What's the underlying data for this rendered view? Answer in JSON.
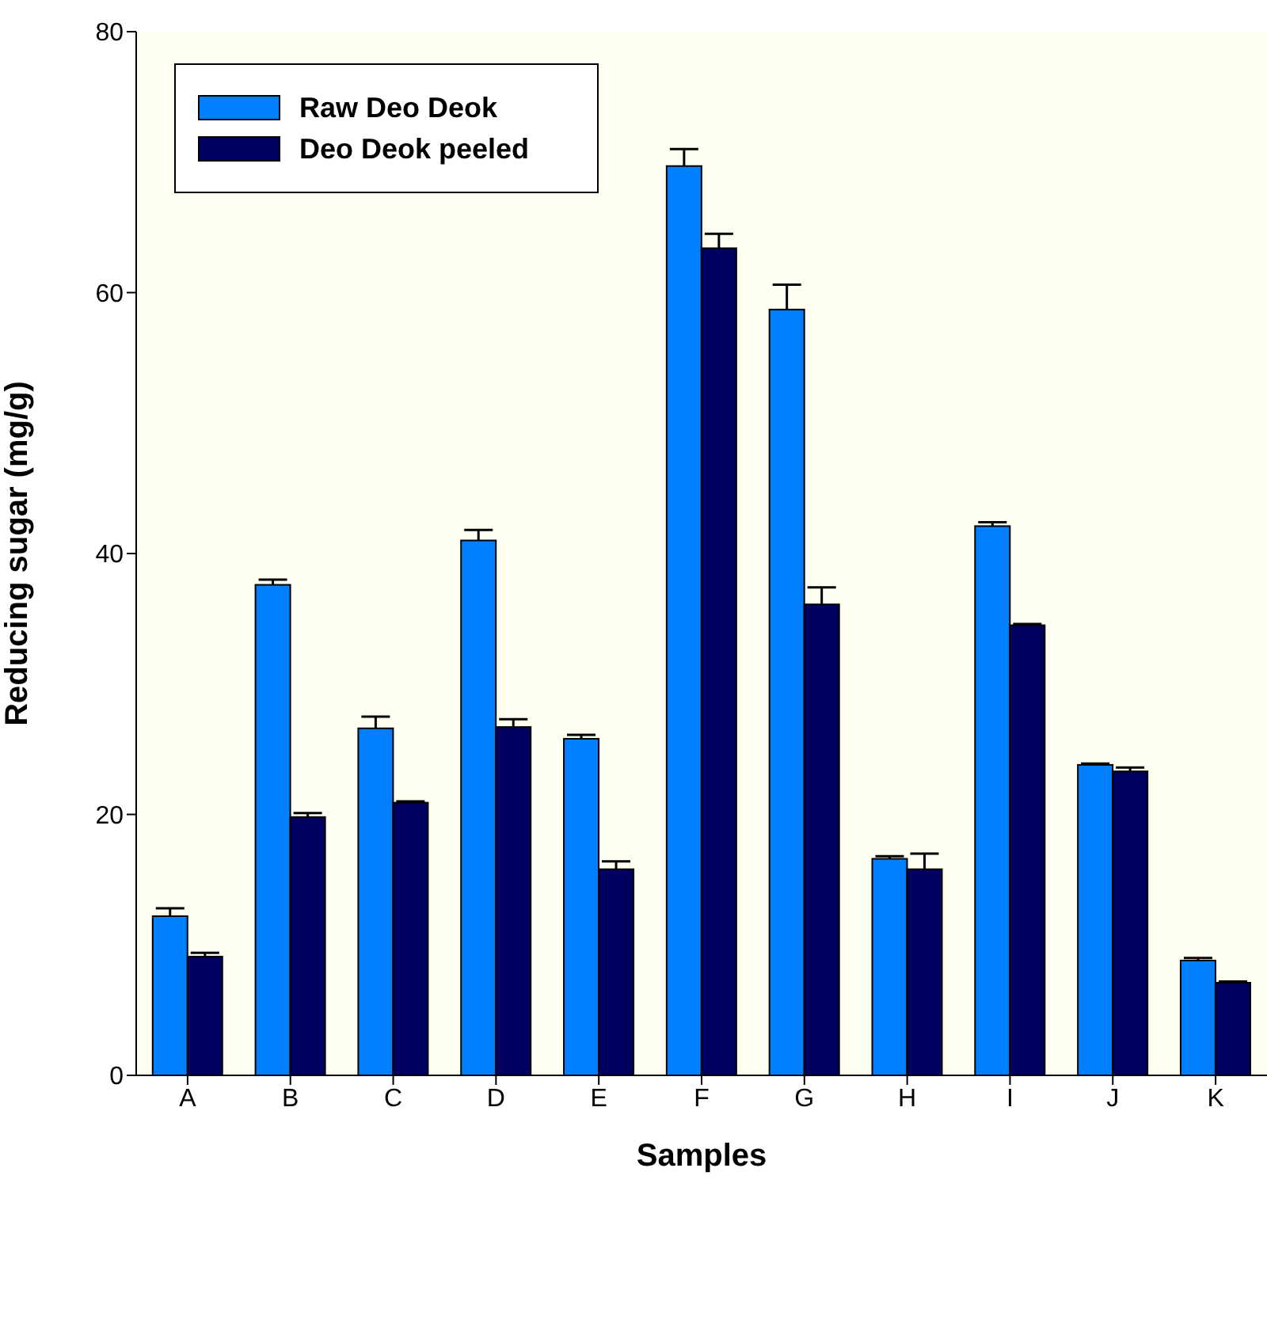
{
  "chart_data": {
    "type": "bar",
    "xlabel": "Samples",
    "ylabel": "Reducing sugar (mg/g)",
    "categories": [
      "A",
      "B",
      "C",
      "D",
      "E",
      "F",
      "G",
      "H",
      "I",
      "J",
      "K"
    ],
    "series": [
      {
        "name": "Raw Deo Deok",
        "color": "#0080ff",
        "values": [
          12.2,
          37.6,
          26.6,
          41.0,
          25.8,
          69.7,
          58.7,
          16.6,
          42.1,
          23.8,
          8.8
        ],
        "errors": [
          0.6,
          0.4,
          0.9,
          0.8,
          0.3,
          1.3,
          1.9,
          0.2,
          0.3,
          0.1,
          0.2
        ]
      },
      {
        "name": "Deo Deok peeled",
        "color": "#000060",
        "values": [
          9.1,
          19.8,
          20.9,
          26.7,
          15.8,
          63.4,
          36.1,
          15.8,
          34.5,
          23.3,
          7.1
        ],
        "errors": [
          0.3,
          0.3,
          0.1,
          0.6,
          0.6,
          1.1,
          1.3,
          1.2,
          0.1,
          0.3,
          0.1
        ]
      }
    ],
    "ylim": [
      0,
      80
    ],
    "yticks": [
      0,
      20,
      40,
      60,
      80
    ],
    "legend": "top left"
  }
}
